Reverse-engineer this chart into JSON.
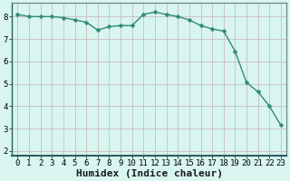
{
  "x": [
    0,
    1,
    2,
    3,
    4,
    5,
    6,
    7,
    8,
    9,
    10,
    11,
    12,
    13,
    14,
    15,
    16,
    17,
    18,
    19,
    20,
    21,
    22,
    23
  ],
  "y": [
    8.1,
    8.0,
    8.0,
    8.0,
    7.95,
    7.85,
    7.75,
    7.4,
    7.55,
    7.6,
    7.6,
    8.1,
    8.2,
    8.1,
    8.0,
    7.85,
    7.6,
    7.45,
    7.35,
    6.45,
    5.05,
    4.65,
    4.0,
    3.15
  ],
  "line_color": "#2e8b74",
  "marker": "D",
  "marker_size": 2.5,
  "bg_color": "#d8f5f0",
  "grid_color": "#c8b8b8",
  "xlabel": "Humidex (Indice chaleur)",
  "xlim": [
    -0.5,
    23.5
  ],
  "ylim": [
    1.8,
    8.6
  ],
  "yticks": [
    2,
    3,
    4,
    5,
    6,
    7,
    8
  ],
  "xticks": [
    0,
    1,
    2,
    3,
    4,
    5,
    6,
    7,
    8,
    9,
    10,
    11,
    12,
    13,
    14,
    15,
    16,
    17,
    18,
    19,
    20,
    21,
    22,
    23
  ],
  "tick_label_size": 6.5,
  "xlabel_size": 8,
  "spine_color": "#608080",
  "axis_bg": "#d8f5f0"
}
